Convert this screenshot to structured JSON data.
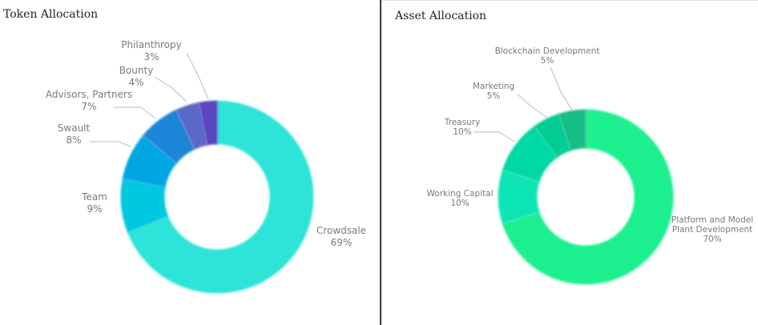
{
  "chart_data": [
    {
      "type": "pie",
      "variant": "donut",
      "title": "Token Allocation",
      "slices": [
        {
          "label": "Crowdsale",
          "value": 69,
          "pct_text": "69%",
          "color": "#2ee4d8"
        },
        {
          "label": "Team",
          "value": 9,
          "pct_text": "9%",
          "color": "#00c8e0"
        },
        {
          "label": "Swault",
          "value": 8,
          "pct_text": "8%",
          "color": "#05a6e2"
        },
        {
          "label": "Advisors, Partners",
          "value": 7,
          "pct_text": "7%",
          "color": "#1a86d8"
        },
        {
          "label": "Bounty",
          "value": 4,
          "pct_text": "4%",
          "color": "#5a68c8"
        },
        {
          "label": "Philanthropy",
          "value": 3,
          "pct_text": "3%",
          "color": "#5b45c0"
        }
      ]
    },
    {
      "type": "pie",
      "variant": "donut",
      "title": "Asset Allocation",
      "slices": [
        {
          "label": "Platform and Model Plant Development",
          "label_lines": [
            "Platform and Model",
            "Plant Development"
          ],
          "value": 70,
          "pct_text": "70%",
          "color": "#1ef08e"
        },
        {
          "label": "Working Capital",
          "value": 10,
          "pct_text": "10%",
          "color": "#08e6b4"
        },
        {
          "label": "Treasury",
          "value": 10,
          "pct_text": "10%",
          "color": "#02d8a6"
        },
        {
          "label": "Marketing",
          "value": 5,
          "pct_text": "5%",
          "color": "#05cc94"
        },
        {
          "label": "Blockchain Development",
          "value": 5,
          "pct_text": "5%",
          "color": "#16be86"
        }
      ]
    }
  ]
}
